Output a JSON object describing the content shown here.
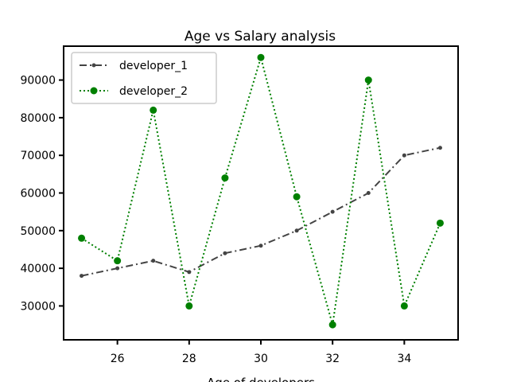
{
  "chart_data": {
    "type": "line",
    "title": "Age vs Salary analysis",
    "xlabel": "Age of developers",
    "ylabel": "",
    "xlim": [
      24.5,
      35.5
    ],
    "ylim": [
      21000,
      99000
    ],
    "x_ticks": [
      26,
      28,
      30,
      32,
      34
    ],
    "y_ticks": [
      30000,
      40000,
      50000,
      60000,
      70000,
      80000,
      90000
    ],
    "grid": false,
    "legend_position": "top-left",
    "x": [
      25,
      26,
      27,
      28,
      29,
      30,
      31,
      32,
      33,
      34,
      35
    ],
    "series": [
      {
        "name": "developer_1",
        "values": [
          38000,
          40000,
          42000,
          39000,
          44000,
          46000,
          50000,
          55000,
          60000,
          70000,
          72000
        ],
        "color": "#444444",
        "style": "dash-dot",
        "marker": "small-dot"
      },
      {
        "name": "developer_2",
        "values": [
          48000,
          42000,
          82000,
          30000,
          64000,
          96000,
          59000,
          25000,
          90000,
          30000,
          52000
        ],
        "color": "#008000",
        "style": "dotted",
        "marker": "circle"
      }
    ]
  }
}
